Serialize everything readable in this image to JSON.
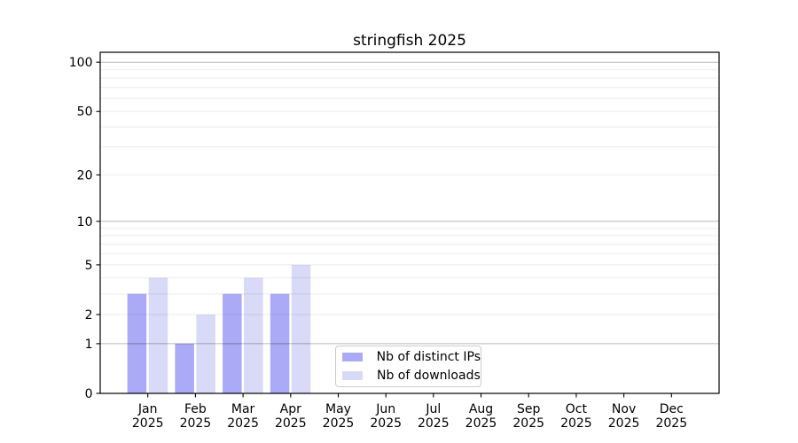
{
  "chart_data": {
    "type": "bar",
    "title": "stringfish 2025",
    "categories": [
      "Jan",
      "Feb",
      "Mar",
      "Apr",
      "May",
      "Jun",
      "Jul",
      "Aug",
      "Sep",
      "Oct",
      "Nov",
      "Dec"
    ],
    "year_label": "2025",
    "series": [
      {
        "name": "Nb of distinct IPs",
        "color": "#aaaaf6",
        "values": [
          3,
          1,
          3,
          3,
          0,
          0,
          0,
          0,
          0,
          0,
          0,
          0
        ]
      },
      {
        "name": "Nb of downloads",
        "color": "#d9d9f8",
        "values": [
          4,
          2,
          4,
          5,
          0,
          0,
          0,
          0,
          0,
          0,
          0,
          0
        ]
      }
    ],
    "yscale": "log1p",
    "ylim": [
      0,
      115
    ],
    "yticks": [
      0,
      1,
      2,
      5,
      10,
      20,
      50,
      100
    ],
    "major_gridlines": [
      1,
      10,
      100
    ],
    "minor_gridlines": [
      2,
      3,
      4,
      5,
      6,
      7,
      8,
      9,
      20,
      30,
      40,
      50,
      60,
      70,
      80,
      90
    ],
    "grid": true,
    "legend_position": "lower center",
    "colors": {
      "background": "#ffffff",
      "axis": "#000000",
      "major_grid": "rgba(0,0,0,0.28)",
      "minor_grid": "rgba(0,0,0,0.08)"
    }
  }
}
